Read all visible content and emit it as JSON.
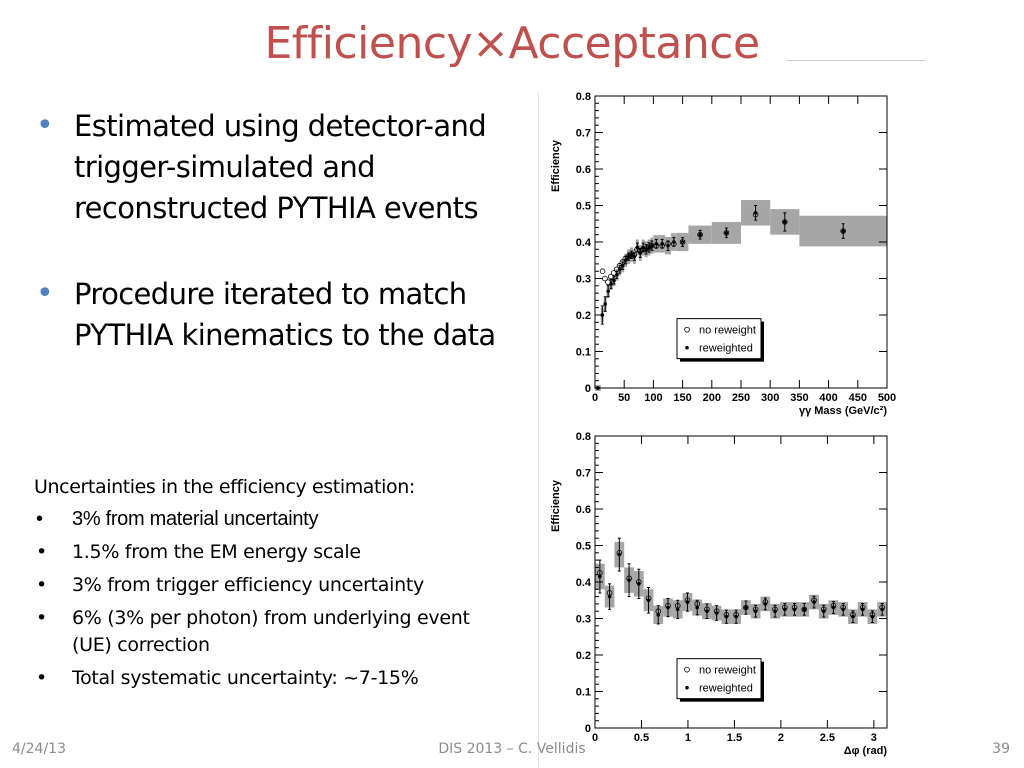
{
  "slide": {
    "title": "Efficiency×Acceptance",
    "bullets": [
      "Estimated using detector-and trigger-simulated and reconstructed PYTHIA events",
      "Procedure iterated to match PYTHIA kinematics to the data"
    ],
    "uncertainties_heading": "Uncertainties in the efficiency estimation:",
    "uncertainties": [
      "3% from material uncertainty",
      "1.5% from the EM energy scale",
      "3% from trigger efficiency uncertainty",
      "6% (3% per photon) from underlying event (UE) correction",
      "Total systematic uncertainty: ~7-15%"
    ],
    "bullet_symbol": "•",
    "bullet_color": "#4f81bd",
    "title_color": "#c0504d"
  },
  "footer": {
    "date": "4/24/13",
    "center": "DIS 2013 – C. Vellidis",
    "page": "39"
  },
  "chart_data": [
    {
      "type": "scatter",
      "ylabel": "Efficiency",
      "xlabel": "γγ Mass (GeV/c²)",
      "xlim": [
        0,
        500
      ],
      "ylim": [
        0,
        0.8
      ],
      "xticks": [
        "0",
        "50",
        "100",
        "150",
        "200",
        "250",
        "300",
        "350",
        "400",
        "450",
        "500"
      ],
      "yticks": [
        "0",
        "0.1",
        "0.2",
        "0.3",
        "0.4",
        "0.5",
        "0.6",
        "0.7",
        "0.8"
      ],
      "legend": {
        "entries": [
          "no reweight",
          "reweighted"
        ],
        "position": "bottom-center"
      },
      "series": [
        {
          "name": "reweighted",
          "bins": [
            {
              "lo": 0,
              "hi": 10,
              "y": 0.0,
              "err": 0.003,
              "sys": 0.003
            },
            {
              "lo": 10,
              "hi": 15,
              "y": 0.2,
              "err": 0.025,
              "sys": 0.02
            },
            {
              "lo": 15,
              "hi": 20,
              "y": 0.23,
              "err": 0.02,
              "sys": 0.02
            },
            {
              "lo": 20,
              "hi": 25,
              "y": 0.265,
              "err": 0.015,
              "sys": 0.018
            },
            {
              "lo": 25,
              "hi": 30,
              "y": 0.285,
              "err": 0.012,
              "sys": 0.016
            },
            {
              "lo": 30,
              "hi": 35,
              "y": 0.295,
              "err": 0.01,
              "sys": 0.016
            },
            {
              "lo": 35,
              "hi": 40,
              "y": 0.31,
              "err": 0.01,
              "sys": 0.016
            },
            {
              "lo": 40,
              "hi": 45,
              "y": 0.325,
              "err": 0.01,
              "sys": 0.017
            },
            {
              "lo": 45,
              "hi": 50,
              "y": 0.335,
              "err": 0.01,
              "sys": 0.018
            },
            {
              "lo": 50,
              "hi": 55,
              "y": 0.35,
              "err": 0.01,
              "sys": 0.018
            },
            {
              "lo": 55,
              "hi": 60,
              "y": 0.36,
              "err": 0.01,
              "sys": 0.02
            },
            {
              "lo": 60,
              "hi": 65,
              "y": 0.365,
              "err": 0.01,
              "sys": 0.02
            },
            {
              "lo": 65,
              "hi": 70,
              "y": 0.36,
              "err": 0.01,
              "sys": 0.02
            },
            {
              "lo": 70,
              "hi": 75,
              "y": 0.385,
              "err": 0.012,
              "sys": 0.022
            },
            {
              "lo": 75,
              "hi": 80,
              "y": 0.37,
              "err": 0.012,
              "sys": 0.022
            },
            {
              "lo": 80,
              "hi": 85,
              "y": 0.385,
              "err": 0.012,
              "sys": 0.022
            },
            {
              "lo": 85,
              "hi": 90,
              "y": 0.38,
              "err": 0.013,
              "sys": 0.022
            },
            {
              "lo": 90,
              "hi": 95,
              "y": 0.385,
              "err": 0.013,
              "sys": 0.022
            },
            {
              "lo": 95,
              "hi": 100,
              "y": 0.39,
              "err": 0.013,
              "sys": 0.022
            },
            {
              "lo": 100,
              "hi": 110,
              "y": 0.395,
              "err": 0.012,
              "sys": 0.024
            },
            {
              "lo": 110,
              "hi": 120,
              "y": 0.395,
              "err": 0.012,
              "sys": 0.024
            },
            {
              "lo": 120,
              "hi": 130,
              "y": 0.39,
              "err": 0.013,
              "sys": 0.024
            },
            {
              "lo": 130,
              "hi": 140,
              "y": 0.4,
              "err": 0.012,
              "sys": 0.024
            },
            {
              "lo": 140,
              "hi": 160,
              "y": 0.4,
              "err": 0.012,
              "sys": 0.025
            },
            {
              "lo": 160,
              "hi": 200,
              "y": 0.42,
              "err": 0.012,
              "sys": 0.025
            },
            {
              "lo": 200,
              "hi": 250,
              "y": 0.425,
              "err": 0.013,
              "sys": 0.03
            },
            {
              "lo": 250,
              "hi": 300,
              "y": 0.48,
              "err": 0.02,
              "sys": 0.035
            },
            {
              "lo": 300,
              "hi": 350,
              "y": 0.455,
              "err": 0.025,
              "sys": 0.035
            },
            {
              "lo": 350,
              "hi": 500,
              "y": 0.43,
              "err": 0.02,
              "sys": 0.042
            }
          ]
        },
        {
          "name": "no reweight",
          "points": [
            {
              "x": 13,
              "y": 0.32
            },
            {
              "x": 17,
              "y": 0.3
            },
            {
              "x": 22,
              "y": 0.29
            },
            {
              "x": 27,
              "y": 0.305
            },
            {
              "x": 32,
              "y": 0.315
            },
            {
              "x": 37,
              "y": 0.325
            },
            {
              "x": 42,
              "y": 0.335
            },
            {
              "x": 47,
              "y": 0.345
            },
            {
              "x": 52,
              "y": 0.355
            },
            {
              "x": 57,
              "y": 0.36
            },
            {
              "x": 62,
              "y": 0.365
            },
            {
              "x": 67,
              "y": 0.365
            },
            {
              "x": 72,
              "y": 0.38
            },
            {
              "x": 77,
              "y": 0.375
            },
            {
              "x": 82,
              "y": 0.38
            },
            {
              "x": 87,
              "y": 0.38
            },
            {
              "x": 92,
              "y": 0.385
            },
            {
              "x": 97,
              "y": 0.39
            },
            {
              "x": 105,
              "y": 0.39
            },
            {
              "x": 115,
              "y": 0.39
            },
            {
              "x": 125,
              "y": 0.395
            },
            {
              "x": 135,
              "y": 0.395
            },
            {
              "x": 150,
              "y": 0.4
            },
            {
              "x": 180,
              "y": 0.42
            },
            {
              "x": 225,
              "y": 0.425
            },
            {
              "x": 275,
              "y": 0.475
            },
            {
              "x": 325,
              "y": 0.455
            },
            {
              "x": 425,
              "y": 0.43
            }
          ]
        }
      ]
    },
    {
      "type": "scatter",
      "ylabel": "Efficiency",
      "xlabel": "Δφ (rad)",
      "xlim": [
        0,
        3.1416
      ],
      "ylim": [
        0,
        0.8
      ],
      "xticks": [
        "0",
        "0.5",
        "1",
        "1.5",
        "2",
        "2.5",
        "3"
      ],
      "yticks": [
        "0",
        "0.1",
        "0.2",
        "0.3",
        "0.4",
        "0.5",
        "0.6",
        "0.7",
        "0.8"
      ],
      "legend": {
        "entries": [
          "no reweight",
          "reweighted"
        ],
        "position": "bottom-center"
      },
      "series": [
        {
          "name": "reweighted",
          "bins": [
            {
              "lo": 0,
              "hi": 0.105,
              "y": 0.415,
              "err": 0.045,
              "sys": 0.035
            },
            {
              "lo": 0.105,
              "hi": 0.209,
              "y": 0.36,
              "err": 0.035,
              "sys": 0.03
            },
            {
              "lo": 0.209,
              "hi": 0.314,
              "y": 0.475,
              "err": 0.045,
              "sys": 0.035
            },
            {
              "lo": 0.314,
              "hi": 0.419,
              "y": 0.405,
              "err": 0.045,
              "sys": 0.035
            },
            {
              "lo": 0.419,
              "hi": 0.524,
              "y": 0.395,
              "err": 0.04,
              "sys": 0.035
            },
            {
              "lo": 0.524,
              "hi": 0.628,
              "y": 0.35,
              "err": 0.035,
              "sys": 0.03
            },
            {
              "lo": 0.628,
              "hi": 0.733,
              "y": 0.31,
              "err": 0.025,
              "sys": 0.025
            },
            {
              "lo": 0.733,
              "hi": 0.838,
              "y": 0.33,
              "err": 0.025,
              "sys": 0.025
            },
            {
              "lo": 0.838,
              "hi": 0.942,
              "y": 0.325,
              "err": 0.025,
              "sys": 0.025
            },
            {
              "lo": 0.942,
              "hi": 1.047,
              "y": 0.345,
              "err": 0.025,
              "sys": 0.025
            },
            {
              "lo": 1.047,
              "hi": 1.152,
              "y": 0.33,
              "err": 0.02,
              "sys": 0.022
            },
            {
              "lo": 1.152,
              "hi": 1.257,
              "y": 0.32,
              "err": 0.02,
              "sys": 0.022
            },
            {
              "lo": 1.257,
              "hi": 1.361,
              "y": 0.315,
              "err": 0.02,
              "sys": 0.02
            },
            {
              "lo": 1.361,
              "hi": 1.466,
              "y": 0.305,
              "err": 0.018,
              "sys": 0.02
            },
            {
              "lo": 1.466,
              "hi": 1.571,
              "y": 0.305,
              "err": 0.018,
              "sys": 0.02
            },
            {
              "lo": 1.571,
              "hi": 1.676,
              "y": 0.33,
              "err": 0.018,
              "sys": 0.02
            },
            {
              "lo": 1.676,
              "hi": 1.78,
              "y": 0.32,
              "err": 0.016,
              "sys": 0.02
            },
            {
              "lo": 1.78,
              "hi": 1.885,
              "y": 0.34,
              "err": 0.016,
              "sys": 0.02
            },
            {
              "lo": 1.885,
              "hi": 1.99,
              "y": 0.32,
              "err": 0.016,
              "sys": 0.02
            },
            {
              "lo": 1.99,
              "hi": 2.094,
              "y": 0.325,
              "err": 0.016,
              "sys": 0.02
            },
            {
              "lo": 2.094,
              "hi": 2.199,
              "y": 0.325,
              "err": 0.016,
              "sys": 0.02
            },
            {
              "lo": 2.199,
              "hi": 2.304,
              "y": 0.325,
              "err": 0.016,
              "sys": 0.02
            },
            {
              "lo": 2.304,
              "hi": 2.409,
              "y": 0.345,
              "err": 0.016,
              "sys": 0.02
            },
            {
              "lo": 2.409,
              "hi": 2.513,
              "y": 0.32,
              "err": 0.016,
              "sys": 0.02
            },
            {
              "lo": 2.513,
              "hi": 2.618,
              "y": 0.33,
              "err": 0.016,
              "sys": 0.02
            },
            {
              "lo": 2.618,
              "hi": 2.723,
              "y": 0.325,
              "err": 0.016,
              "sys": 0.02
            },
            {
              "lo": 2.723,
              "hi": 2.827,
              "y": 0.305,
              "err": 0.016,
              "sys": 0.02
            },
            {
              "lo": 2.827,
              "hi": 2.932,
              "y": 0.325,
              "err": 0.016,
              "sys": 0.02
            },
            {
              "lo": 2.932,
              "hi": 3.037,
              "y": 0.305,
              "err": 0.016,
              "sys": 0.02
            },
            {
              "lo": 3.037,
              "hi": 3.142,
              "y": 0.325,
              "err": 0.016,
              "sys": 0.02
            }
          ]
        },
        {
          "name": "no reweight",
          "points": [
            {
              "x": 0.052,
              "y": 0.425
            },
            {
              "x": 0.157,
              "y": 0.37
            },
            {
              "x": 0.262,
              "y": 0.48
            },
            {
              "x": 0.367,
              "y": 0.41
            },
            {
              "x": 0.471,
              "y": 0.4
            },
            {
              "x": 0.576,
              "y": 0.355
            },
            {
              "x": 0.681,
              "y": 0.32
            },
            {
              "x": 0.785,
              "y": 0.335
            },
            {
              "x": 0.89,
              "y": 0.335
            },
            {
              "x": 0.995,
              "y": 0.35
            },
            {
              "x": 1.1,
              "y": 0.34
            },
            {
              "x": 1.204,
              "y": 0.325
            },
            {
              "x": 1.309,
              "y": 0.32
            },
            {
              "x": 1.414,
              "y": 0.31
            },
            {
              "x": 1.518,
              "y": 0.31
            },
            {
              "x": 1.623,
              "y": 0.33
            },
            {
              "x": 1.728,
              "y": 0.325
            },
            {
              "x": 1.833,
              "y": 0.345
            },
            {
              "x": 1.937,
              "y": 0.325
            },
            {
              "x": 2.042,
              "y": 0.33
            },
            {
              "x": 2.147,
              "y": 0.33
            },
            {
              "x": 2.251,
              "y": 0.325
            },
            {
              "x": 2.356,
              "y": 0.35
            },
            {
              "x": 2.461,
              "y": 0.325
            },
            {
              "x": 2.566,
              "y": 0.335
            },
            {
              "x": 2.67,
              "y": 0.33
            },
            {
              "x": 2.775,
              "y": 0.31
            },
            {
              "x": 2.88,
              "y": 0.33
            },
            {
              "x": 2.985,
              "y": 0.31
            },
            {
              "x": 3.089,
              "y": 0.33
            }
          ]
        }
      ]
    }
  ]
}
